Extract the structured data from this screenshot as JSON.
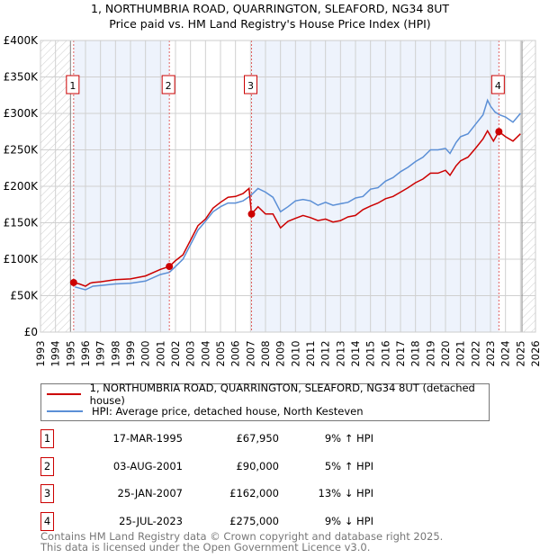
{
  "chart_data": {
    "type": "line",
    "title": "1, NORTHUMBRIA ROAD, QUARRINGTON, SLEAFORD, NG34 8UT",
    "subtitle": "Price paid vs. HM Land Registry's House Price Index (HPI)",
    "xlim": [
      1993,
      2026
    ],
    "ylim": [
      0,
      400000
    ],
    "x_ticks": [
      "1993",
      "1994",
      "1995",
      "1996",
      "1997",
      "1998",
      "1999",
      "2000",
      "2001",
      "2002",
      "2003",
      "2004",
      "2005",
      "2006",
      "2007",
      "2008",
      "2009",
      "2010",
      "2011",
      "2012",
      "2013",
      "2014",
      "2015",
      "2016",
      "2017",
      "2018",
      "2019",
      "2020",
      "2021",
      "2022",
      "2023",
      "2024",
      "2025",
      "2026"
    ],
    "y_ticks": [
      {
        "v": 0,
        "label": "£0"
      },
      {
        "v": 50000,
        "label": "£50K"
      },
      {
        "v": 100000,
        "label": "£100K"
      },
      {
        "v": 150000,
        "label": "£150K"
      },
      {
        "v": 200000,
        "label": "£200K"
      },
      {
        "v": 250000,
        "label": "£250K"
      },
      {
        "v": 300000,
        "label": "£300K"
      },
      {
        "v": 350000,
        "label": "£350K"
      },
      {
        "v": 400000,
        "label": "£400K"
      }
    ],
    "grid": true,
    "data_range": [
      1995.0,
      2025.1
    ],
    "shaded_bands": [
      [
        1995.21,
        2001.59
      ],
      [
        2007.07,
        2023.56
      ]
    ],
    "series": [
      {
        "name": "1, NORTHUMBRIA ROAD, QUARRINGTON, SLEAFORD, NG34 8UT (detached house)",
        "color": "#cc0000",
        "x": [
          1995.21,
          1995.6,
          1996,
          1996.3,
          1996.5,
          1997,
          1998,
          1999,
          2000,
          2001,
          2001.59,
          2002,
          2002.5,
          2003,
          2003.5,
          2004,
          2004.5,
          2005,
          2005.5,
          2006,
          2006.5,
          2006.9,
          2007.07,
          2007.5,
          2008,
          2008.5,
          2009,
          2009.5,
          2010,
          2010.5,
          2011,
          2011.5,
          2012,
          2012.5,
          2013,
          2013.5,
          2014,
          2014.5,
          2015,
          2015.5,
          2016,
          2016.5,
          2017,
          2017.5,
          2018,
          2018.5,
          2019,
          2019.5,
          2020,
          2020.3,
          2020.7,
          2021,
          2021.5,
          2022,
          2022.5,
          2022.8,
          2023.2,
          2023.56,
          2024,
          2024.5,
          2025
        ],
        "values": [
          67950,
          66000,
          63000,
          67000,
          68000,
          69000,
          72000,
          73000,
          77000,
          86000,
          90000,
          98000,
          106000,
          126000,
          146000,
          155000,
          170000,
          178000,
          185000,
          186000,
          190000,
          197000,
          162000,
          172000,
          162000,
          162000,
          143000,
          152000,
          156000,
          160000,
          157000,
          153000,
          155000,
          151000,
          153000,
          158000,
          160000,
          168000,
          173000,
          177000,
          183000,
          186000,
          192000,
          198000,
          205000,
          210000,
          218000,
          218000,
          222000,
          215000,
          228000,
          235000,
          240000,
          252000,
          265000,
          276000,
          262000,
          275000,
          268000,
          262000,
          272000
        ]
      },
      {
        "name": "HPI: Average price, detached house, North Kesteven",
        "color": "#5b8fd6",
        "x": [
          1995.3,
          1996,
          1996.5,
          1997,
          1998,
          1999,
          2000,
          2001,
          2001.6,
          2002,
          2002.5,
          2003,
          2003.5,
          2004,
          2004.5,
          2005,
          2005.5,
          2006,
          2006.5,
          2007,
          2007.5,
          2008,
          2008.5,
          2009,
          2009.5,
          2010,
          2010.5,
          2011,
          2011.5,
          2012,
          2012.5,
          2013,
          2013.5,
          2014,
          2014.5,
          2015,
          2015.5,
          2016,
          2016.5,
          2017,
          2017.5,
          2018,
          2018.5,
          2019,
          2019.5,
          2020,
          2020.3,
          2020.7,
          2021,
          2021.5,
          2022,
          2022.5,
          2022.8,
          2023,
          2023.3,
          2023.6,
          2024,
          2024.5,
          2025
        ],
        "values": [
          62000,
          58000,
          63000,
          64000,
          66000,
          67000,
          70000,
          79000,
          82000,
          90000,
          100000,
          120000,
          140000,
          152000,
          165000,
          172000,
          177000,
          177000,
          180000,
          187000,
          197000,
          192000,
          185000,
          165000,
          172000,
          180000,
          182000,
          180000,
          174000,
          178000,
          174000,
          176000,
          178000,
          184000,
          186000,
          196000,
          198000,
          207000,
          212000,
          220000,
          226000,
          234000,
          240000,
          250000,
          250000,
          252000,
          245000,
          260000,
          268000,
          272000,
          285000,
          298000,
          318000,
          310000,
          302000,
          298000,
          295000,
          288000,
          300000
        ]
      }
    ],
    "sales": [
      {
        "label": "1",
        "date": "17-MAR-1995",
        "price": "£67,950",
        "hpi": "9% ↑ HPI",
        "x": 1995.21,
        "value": 67950
      },
      {
        "label": "2",
        "date": "03-AUG-2001",
        "price": "£90,000",
        "hpi": "5% ↑ HPI",
        "x": 2001.59,
        "value": 90000
      },
      {
        "label": "3",
        "date": "25-JAN-2007",
        "price": "£162,000",
        "hpi": "13% ↓ HPI",
        "x": 2007.07,
        "value": 162000
      },
      {
        "label": "4",
        "date": "25-JUL-2023",
        "price": "£275,000",
        "hpi": "9% ↓ HPI",
        "x": 2023.56,
        "value": 275000
      }
    ]
  },
  "legend": {
    "red": "1, NORTHUMBRIA ROAD, QUARRINGTON, SLEAFORD, NG34 8UT (detached house)",
    "blue": "HPI: Average price, detached house, North Kesteven"
  },
  "footer": {
    "line1": "Contains HM Land Registry data © Crown copyright and database right 2025.",
    "line2": "This data is licensed under the Open Government Licence v3.0."
  }
}
